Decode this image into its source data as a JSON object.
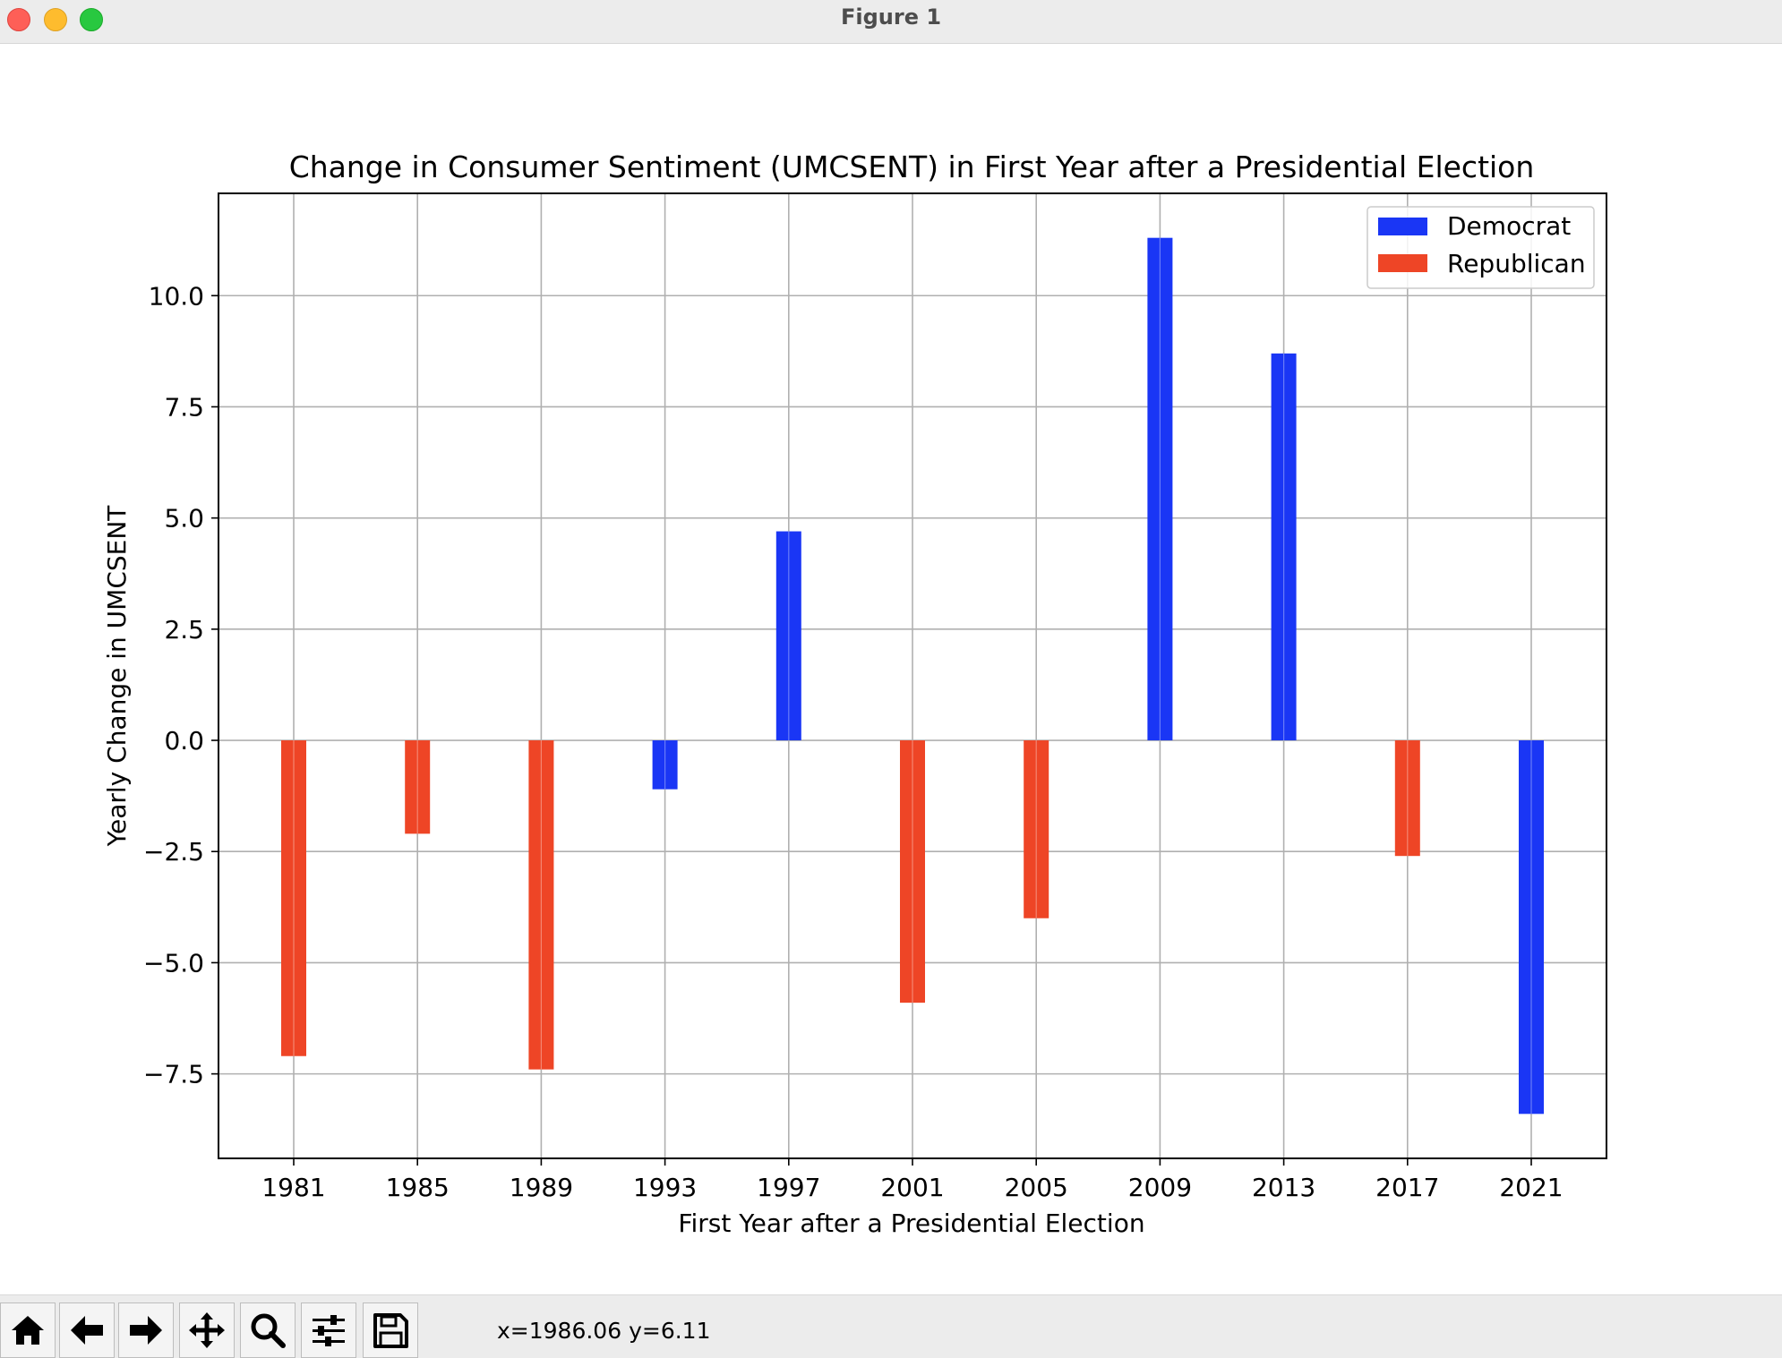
{
  "window": {
    "title": "Figure 1"
  },
  "toolbar": {
    "buttons": [
      {
        "name": "home-button",
        "icon": "home-icon"
      },
      {
        "name": "back-button",
        "icon": "arrow-left-icon"
      },
      {
        "name": "forward-button",
        "icon": "arrow-right-icon"
      },
      {
        "name": "pan-button",
        "icon": "move-icon"
      },
      {
        "name": "zoom-button",
        "icon": "magnifier-icon"
      },
      {
        "name": "configure-subplots-button",
        "icon": "sliders-icon"
      },
      {
        "name": "save-button",
        "icon": "floppy-disk-icon"
      }
    ],
    "coords": "x=1986.06 y=6.11"
  },
  "chart_data": {
    "type": "bar",
    "title": "Change in Consumer Sentiment (UMCSENT) in First Year after a Presidential Election",
    "xlabel": "First Year after a Presidential Election",
    "ylabel": "Yearly Change in UMCSENT",
    "categories": [
      "1981",
      "1985",
      "1989",
      "1993",
      "1997",
      "2001",
      "2005",
      "2009",
      "2013",
      "2017",
      "2021"
    ],
    "values": [
      -7.1,
      -2.1,
      -7.4,
      -1.1,
      4.7,
      -5.9,
      -4.0,
      11.3,
      8.7,
      -2.6,
      -8.4
    ],
    "party": [
      "Republican",
      "Republican",
      "Republican",
      "Democrat",
      "Democrat",
      "Republican",
      "Republican",
      "Democrat",
      "Democrat",
      "Republican",
      "Democrat"
    ],
    "series": [
      {
        "name": "Democrat",
        "color": "#1a36f5"
      },
      {
        "name": "Republican",
        "color": "#ee4526"
      }
    ],
    "yticks": [
      -7.5,
      -5.0,
      -2.5,
      0.0,
      2.5,
      5.0,
      7.5,
      10.0
    ],
    "ytick_labels": [
      "−7.5",
      "−5.0",
      "−2.5",
      "0.0",
      "2.5",
      "5.0",
      "7.5",
      "10.0"
    ],
    "ylim": [
      -9.4,
      12.3
    ],
    "grid": true,
    "legend_position": "top-right"
  }
}
